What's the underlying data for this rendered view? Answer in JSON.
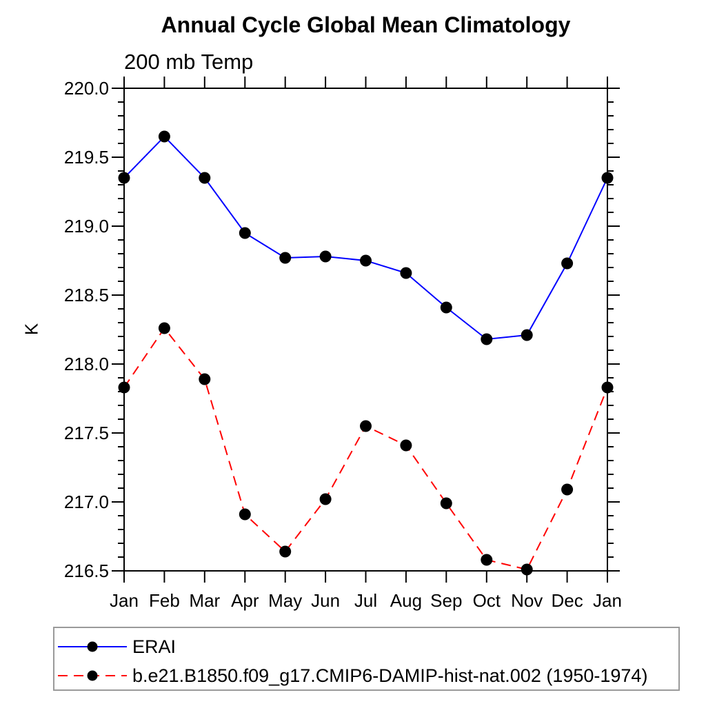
{
  "chart_data": {
    "type": "line",
    "title": "Annual Cycle Global Mean Climatology",
    "subtitle": "200 mb Temp",
    "ylabel": "K",
    "x_categories": [
      "Jan",
      "Feb",
      "Mar",
      "Apr",
      "May",
      "Jun",
      "Jul",
      "Aug",
      "Sep",
      "Oct",
      "Nov",
      "Dec",
      "Jan"
    ],
    "ylim": [
      216.5,
      220.0
    ],
    "ytick_major_interval": 0.5,
    "ytick_minor_interval": 0.1,
    "ytick_labels": [
      "216.5",
      "217.0",
      "217.5",
      "218.0",
      "218.5",
      "219.0",
      "219.5",
      "220.0"
    ],
    "grid": "off",
    "legend_position": "bottom-left",
    "axis_color": "#000000",
    "marker_color": "#000000",
    "series": [
      {
        "name": "ERAI",
        "color": "#0000ff",
        "line_style": "solid",
        "marker": "filled-circle",
        "values": [
          219.35,
          219.65,
          219.35,
          218.95,
          218.77,
          218.78,
          218.75,
          218.66,
          218.41,
          218.18,
          218.21,
          218.73,
          219.35
        ]
      },
      {
        "name": "b.e21.B1850.f09_g17.CMIP6-DAMIP-hist-nat.002 (1950-1974)",
        "color": "#ff0000",
        "line_style": "dashed",
        "marker": "filled-circle",
        "values": [
          217.83,
          218.26,
          217.89,
          216.91,
          216.64,
          217.02,
          217.55,
          217.41,
          216.99,
          216.58,
          216.51,
          217.09,
          217.83
        ]
      }
    ]
  }
}
